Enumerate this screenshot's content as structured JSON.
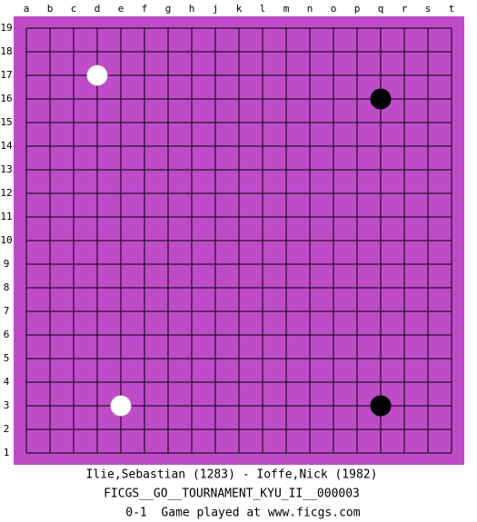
{
  "board": {
    "columns": [
      "a",
      "b",
      "c",
      "d",
      "e",
      "f",
      "g",
      "h",
      "j",
      "k",
      "l",
      "m",
      "n",
      "o",
      "p",
      "q",
      "r",
      "s",
      "t"
    ],
    "rows": [
      19,
      18,
      17,
      16,
      15,
      14,
      13,
      12,
      11,
      10,
      9,
      8,
      7,
      6,
      5,
      4,
      3,
      2,
      1
    ],
    "stones": [
      {
        "color": "white",
        "col": "d",
        "row": 17
      },
      {
        "color": "black",
        "col": "q",
        "row": 16
      },
      {
        "color": "white",
        "col": "e",
        "row": 3
      },
      {
        "color": "black",
        "col": "q",
        "row": 3
      }
    ]
  },
  "footer": {
    "players": "Ilie,Sebastian (1283) - Ioffe,Nick (1982)",
    "event": "FICGS__GO__TOURNAMENT_KYU_II__000003",
    "result": "0-1",
    "site": "Game played at www.ficgs.com"
  }
}
